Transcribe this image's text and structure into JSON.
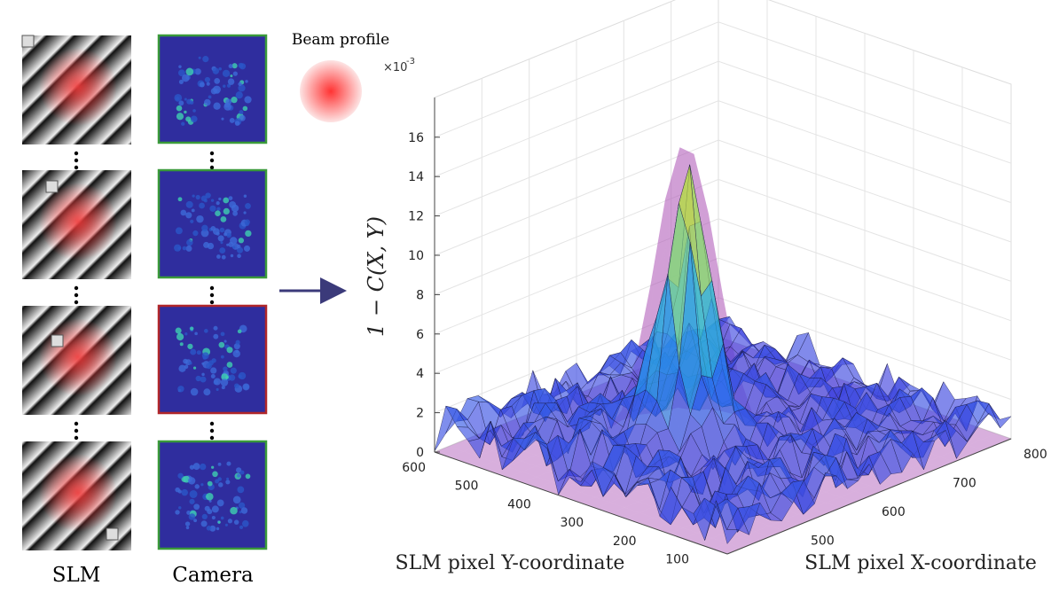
{
  "left_panel": {
    "slm_label": "SLM",
    "camera_label": "Camera",
    "beam_label": "Beam profile"
  },
  "plot": {
    "exponent_base": "×10",
    "exponent": "-3",
    "z_label": "1 − C(X, Y)",
    "z_ticks": [
      0,
      2,
      4,
      6,
      8,
      10,
      12,
      14,
      16
    ],
    "y_ticks": [
      600,
      500,
      400,
      300,
      200,
      100
    ],
    "x_ticks": [
      500,
      600,
      700,
      800
    ],
    "y_label": "SLM pixel Y-coordinate",
    "x_label": "SLM pixel X-coordinate"
  }
}
